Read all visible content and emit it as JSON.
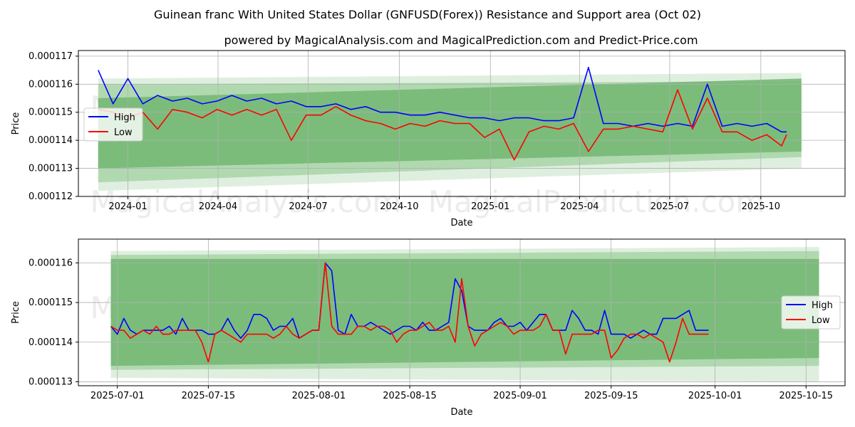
{
  "title": "Guinean franc With United States Dollar (GNFUSD(Forex)) Resistance and Support area (Oct 02)",
  "subtitle": "powered by MagicalAnalysis.com and MagicalPrediction.com and Predict-Price.com",
  "watermarks": [
    "MagicalAnalysis.com",
    "MagicalPrediction.com"
  ],
  "colors": {
    "high": "#0000ff",
    "low": "#ff0000",
    "band_dark": "#4a9e4a",
    "band_light": "#b8dcb8",
    "grid": "#b0b0b0"
  },
  "chart_data": [
    {
      "type": "line",
      "xlabel": "Date",
      "ylabel": "Price",
      "x_ticks": [
        "2024-01",
        "2024-04",
        "2024-07",
        "2024-10",
        "2025-01",
        "2025-04",
        "2025-07",
        "2025-10"
      ],
      "y_ticks": [
        "0.000112",
        "0.000113",
        "0.000114",
        "0.000115",
        "0.000116",
        "0.000117"
      ],
      "ylim": [
        0.000112,
        0.0001172
      ],
      "xlim_days": [
        -20,
        754
      ],
      "x_tick_days": [
        30,
        121,
        212,
        304,
        396,
        486,
        577,
        669
      ],
      "legend": [
        "High",
        "Low"
      ],
      "legend_position": "center-left",
      "bands": [
        {
          "x": [
            0,
            710
          ],
          "upper_start": 0.0001162,
          "upper_end": 0.0001164,
          "lower_start": 0.0001122,
          "lower_end": 0.000113,
          "shade": "light"
        },
        {
          "x": [
            0,
            710
          ],
          "upper_start": 0.000116,
          "upper_end": 0.0001161,
          "lower_start": 0.0001125,
          "lower_end": 0.0001134,
          "shade": "mid"
        },
        {
          "x": [
            0,
            710
          ],
          "upper_start": 0.0001155,
          "upper_end": 0.0001162,
          "lower_start": 0.000113,
          "lower_end": 0.0001136,
          "shade": "dark"
        }
      ],
      "series": [
        {
          "name": "High",
          "x": [
            0,
            15,
            30,
            45,
            60,
            75,
            90,
            105,
            120,
            135,
            150,
            165,
            180,
            195,
            210,
            225,
            240,
            255,
            270,
            285,
            300,
            315,
            330,
            345,
            360,
            375,
            390,
            405,
            420,
            435,
            450,
            465,
            480,
            495,
            510,
            525,
            540,
            555,
            570,
            585,
            600,
            615,
            630,
            645,
            660,
            675,
            690,
            695
          ],
          "values": [
            0.0001165,
            0.0001153,
            0.0001162,
            0.0001153,
            0.0001156,
            0.0001154,
            0.0001155,
            0.0001153,
            0.0001154,
            0.0001156,
            0.0001154,
            0.0001155,
            0.0001153,
            0.0001154,
            0.0001152,
            0.0001152,
            0.0001153,
            0.0001151,
            0.0001152,
            0.000115,
            0.000115,
            0.0001149,
            0.0001149,
            0.000115,
            0.0001149,
            0.0001148,
            0.0001148,
            0.0001147,
            0.0001148,
            0.0001148,
            0.0001147,
            0.0001147,
            0.0001148,
            0.0001166,
            0.0001146,
            0.0001146,
            0.0001145,
            0.0001146,
            0.0001145,
            0.0001146,
            0.0001145,
            0.000116,
            0.0001145,
            0.0001146,
            0.0001145,
            0.0001146,
            0.0001143,
            0.0001143
          ]
        },
        {
          "name": "Low",
          "x": [
            0,
            15,
            30,
            45,
            60,
            75,
            90,
            105,
            120,
            135,
            150,
            165,
            180,
            195,
            210,
            225,
            240,
            255,
            270,
            285,
            300,
            315,
            330,
            345,
            360,
            375,
            390,
            405,
            420,
            435,
            450,
            465,
            480,
            495,
            510,
            525,
            540,
            555,
            570,
            585,
            600,
            615,
            630,
            645,
            660,
            675,
            690,
            695
          ],
          "values": [
            0.0001151,
            0.000115,
            0.0001148,
            0.000115,
            0.0001144,
            0.0001151,
            0.000115,
            0.0001148,
            0.0001151,
            0.0001149,
            0.0001151,
            0.0001149,
            0.0001151,
            0.000114,
            0.0001149,
            0.0001149,
            0.0001152,
            0.0001149,
            0.0001147,
            0.0001146,
            0.0001144,
            0.0001146,
            0.0001145,
            0.0001147,
            0.0001146,
            0.0001146,
            0.0001141,
            0.0001144,
            0.0001133,
            0.0001143,
            0.0001145,
            0.0001144,
            0.0001146,
            0.0001136,
            0.0001144,
            0.0001144,
            0.0001145,
            0.0001144,
            0.0001143,
            0.0001158,
            0.0001144,
            0.0001155,
            0.0001143,
            0.0001143,
            0.000114,
            0.0001142,
            0.0001138,
            0.0001142
          ]
        }
      ]
    },
    {
      "type": "line",
      "xlabel": "Date",
      "ylabel": "Price",
      "x_ticks": [
        "2025-07-01",
        "2025-07-15",
        "2025-08-01",
        "2025-08-15",
        "2025-09-01",
        "2025-09-15",
        "2025-10-01",
        "2025-10-15"
      ],
      "y_ticks": [
        "0.000113",
        "0.000114",
        "0.000115",
        "0.000116"
      ],
      "ylim": [
        0.0001129,
        0.0001166
      ],
      "xlim_days": [
        -5,
        113
      ],
      "x_tick_days": [
        1,
        15,
        32,
        46,
        63,
        77,
        93,
        107
      ],
      "legend": [
        "High",
        "Low"
      ],
      "legend_position": "center-right",
      "bands": [
        {
          "x": [
            0,
            109
          ],
          "upper_start": 0.0001163,
          "upper_end": 0.0001164,
          "lower_start": 0.0001131,
          "lower_end": 0.000113,
          "shade": "light"
        },
        {
          "x": [
            0,
            109
          ],
          "upper_start": 0.0001162,
          "upper_end": 0.0001163,
          "lower_start": 0.0001133,
          "lower_end": 0.0001134,
          "shade": "mid"
        },
        {
          "x": [
            0,
            109
          ],
          "upper_start": 0.0001161,
          "upper_end": 0.0001161,
          "lower_start": 0.0001134,
          "lower_end": 0.0001136,
          "shade": "dark"
        }
      ],
      "series": [
        {
          "name": "High",
          "x": [
            0,
            1,
            2,
            3,
            4,
            5,
            6,
            7,
            8,
            9,
            10,
            11,
            12,
            13,
            14,
            15,
            16,
            17,
            18,
            19,
            20,
            21,
            22,
            23,
            24,
            25,
            26,
            27,
            28,
            29,
            30,
            31,
            32,
            33,
            34,
            35,
            36,
            37,
            38,
            39,
            40,
            41,
            42,
            43,
            44,
            45,
            46,
            47,
            48,
            49,
            50,
            51,
            52,
            53,
            54,
            55,
            56,
            57,
            58,
            59,
            60,
            61,
            62,
            63,
            64,
            65,
            66,
            67,
            68,
            69,
            70,
            71,
            72,
            73,
            74,
            75,
            76,
            77,
            78,
            79,
            80,
            81,
            82,
            83,
            84,
            85,
            86,
            87,
            88,
            89,
            90,
            91,
            92
          ],
          "values": [
            0.0001144,
            0.0001142,
            0.0001146,
            0.0001143,
            0.0001142,
            0.0001143,
            0.0001143,
            0.0001143,
            0.0001143,
            0.0001144,
            0.0001142,
            0.0001146,
            0.0001143,
            0.0001143,
            0.0001143,
            0.0001142,
            0.0001142,
            0.0001143,
            0.0001146,
            0.0001143,
            0.0001141,
            0.0001143,
            0.0001147,
            0.0001147,
            0.0001146,
            0.0001143,
            0.0001144,
            0.0001144,
            0.0001146,
            0.0001141,
            0.0001142,
            0.0001143,
            0.0001143,
            0.000116,
            0.0001158,
            0.0001143,
            0.0001142,
            0.0001147,
            0.0001144,
            0.0001144,
            0.0001145,
            0.0001144,
            0.0001143,
            0.0001142,
            0.0001143,
            0.0001144,
            0.0001144,
            0.0001143,
            0.0001145,
            0.0001143,
            0.0001143,
            0.0001144,
            0.0001145,
            0.0001156,
            0.0001153,
            0.0001144,
            0.0001143,
            0.0001143,
            0.0001143,
            0.0001145,
            0.0001146,
            0.0001144,
            0.0001144,
            0.0001145,
            0.0001143,
            0.0001145,
            0.0001147,
            0.0001147,
            0.0001143,
            0.0001143,
            0.0001143,
            0.0001148,
            0.0001146,
            0.0001143,
            0.0001143,
            0.0001142,
            0.0001148,
            0.0001142,
            0.0001142,
            0.0001142,
            0.0001141,
            0.0001142,
            0.0001143,
            0.0001142,
            0.0001142,
            0.0001146,
            0.0001146,
            0.0001146,
            0.0001147,
            0.0001148,
            0.0001143,
            0.0001143,
            0.0001143
          ]
        },
        {
          "name": "Low",
          "x": [
            0,
            1,
            2,
            3,
            4,
            5,
            6,
            7,
            8,
            9,
            10,
            11,
            12,
            13,
            14,
            15,
            16,
            17,
            18,
            19,
            20,
            21,
            22,
            23,
            24,
            25,
            26,
            27,
            28,
            29,
            30,
            31,
            32,
            33,
            34,
            35,
            36,
            37,
            38,
            39,
            40,
            41,
            42,
            43,
            44,
            45,
            46,
            47,
            48,
            49,
            50,
            51,
            52,
            53,
            54,
            55,
            56,
            57,
            58,
            59,
            60,
            61,
            62,
            63,
            64,
            65,
            66,
            67,
            68,
            69,
            70,
            71,
            72,
            73,
            74,
            75,
            76,
            77,
            78,
            79,
            80,
            81,
            82,
            83,
            84,
            85,
            86,
            87,
            88,
            89,
            90,
            91,
            92
          ],
          "values": [
            0.0001144,
            0.0001143,
            0.0001143,
            0.0001141,
            0.0001142,
            0.0001143,
            0.0001142,
            0.0001144,
            0.0001142,
            0.0001142,
            0.0001143,
            0.0001143,
            0.0001143,
            0.0001143,
            0.000114,
            0.0001135,
            0.0001142,
            0.0001143,
            0.0001142,
            0.0001141,
            0.000114,
            0.0001142,
            0.0001142,
            0.0001142,
            0.0001142,
            0.0001141,
            0.0001142,
            0.0001144,
            0.0001142,
            0.0001141,
            0.0001142,
            0.0001143,
            0.0001143,
            0.000116,
            0.0001144,
            0.0001142,
            0.0001142,
            0.0001142,
            0.0001144,
            0.0001144,
            0.0001143,
            0.0001144,
            0.0001144,
            0.0001143,
            0.000114,
            0.0001142,
            0.0001143,
            0.0001143,
            0.0001144,
            0.0001145,
            0.0001143,
            0.0001143,
            0.0001144,
            0.000114,
            0.0001156,
            0.0001144,
            0.0001139,
            0.0001142,
            0.0001143,
            0.0001144,
            0.0001145,
            0.0001144,
            0.0001142,
            0.0001143,
            0.0001143,
            0.0001143,
            0.0001144,
            0.0001147,
            0.0001143,
            0.0001143,
            0.0001137,
            0.0001142,
            0.0001142,
            0.0001142,
            0.0001142,
            0.0001143,
            0.0001143,
            0.0001136,
            0.0001138,
            0.0001141,
            0.0001142,
            0.0001142,
            0.0001141,
            0.0001142,
            0.0001141,
            0.000114,
            0.0001135,
            0.000114,
            0.0001146,
            0.0001142,
            0.0001142,
            0.0001142,
            0.0001142
          ]
        }
      ]
    }
  ]
}
